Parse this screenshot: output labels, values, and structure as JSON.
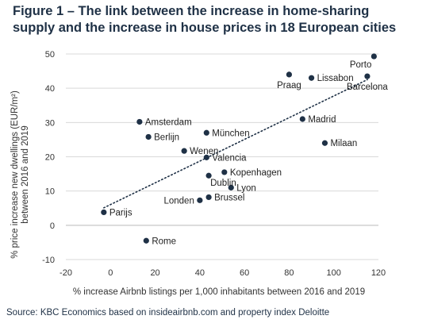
{
  "title": {
    "figure_label": "Figure 1",
    "line1_rest": " – The link between the increase in home-sharing",
    "line2": "supply and the increase in house prices in 18 European cities"
  },
  "source": "Source: KBC Economics based on insideairbnb.com and property index Deloitte",
  "colors": {
    "dot": "#1f3146",
    "axis_text": "#333333",
    "grid": "#d9d9d9",
    "trend": "#1f3146"
  },
  "chart_data": {
    "type": "scatter",
    "xlabel": "% increase Airbnb listings per 1,000 inhabitants between 2016 and 2019",
    "ylabel_line1": "% price increase new dwellings (EUR/m²)",
    "ylabel_line2": "between 2016 and 2019",
    "xlim": [
      -20,
      120
    ],
    "ylim": [
      -10,
      50
    ],
    "xticks": [
      -20,
      0,
      20,
      40,
      60,
      80,
      100,
      120
    ],
    "yticks": [
      -10,
      0,
      10,
      20,
      30,
      40,
      50
    ],
    "grid": "horizontal",
    "trendline": {
      "style": "dotted",
      "x": [
        -3,
        115
      ],
      "y": [
        5.1,
        42.5
      ]
    },
    "points": [
      {
        "name": "Porto",
        "x": 118,
        "y": 49.3,
        "label_pos": "below-left"
      },
      {
        "name": "Praag",
        "x": 80,
        "y": 44,
        "label_pos": "below"
      },
      {
        "name": "Lissabon",
        "x": 90,
        "y": 43,
        "label_pos": "right"
      },
      {
        "name": "Barcelona",
        "x": 115,
        "y": 43.5,
        "label_pos": "below"
      },
      {
        "name": "Madrid",
        "x": 86,
        "y": 31,
        "label_pos": "right"
      },
      {
        "name": "Milaan",
        "x": 96,
        "y": 24,
        "label_pos": "right"
      },
      {
        "name": "Amsterdam",
        "x": 13,
        "y": 30.2,
        "label_pos": "right"
      },
      {
        "name": "Berlijn",
        "x": 17,
        "y": 25.8,
        "label_pos": "right"
      },
      {
        "name": "München",
        "x": 43,
        "y": 27,
        "label_pos": "right"
      },
      {
        "name": "Wenen",
        "x": 33,
        "y": 21.7,
        "label_pos": "right"
      },
      {
        "name": "Valencia",
        "x": 43,
        "y": 19.8,
        "label_pos": "right"
      },
      {
        "name": "Kopenhagen",
        "x": 51,
        "y": 15.5,
        "label_pos": "right"
      },
      {
        "name": "Dublin",
        "x": 44,
        "y": 14.5,
        "label_pos": "below-right"
      },
      {
        "name": "Lyon",
        "x": 54,
        "y": 11,
        "label_pos": "right"
      },
      {
        "name": "Brussel",
        "x": 44,
        "y": 8.2,
        "label_pos": "right"
      },
      {
        "name": "Londen",
        "x": 40,
        "y": 7.3,
        "label_pos": "left"
      },
      {
        "name": "Parijs",
        "x": -3,
        "y": 3.8,
        "label_pos": "right"
      },
      {
        "name": "Rome",
        "x": 16,
        "y": -4.5,
        "label_pos": "right"
      }
    ]
  }
}
